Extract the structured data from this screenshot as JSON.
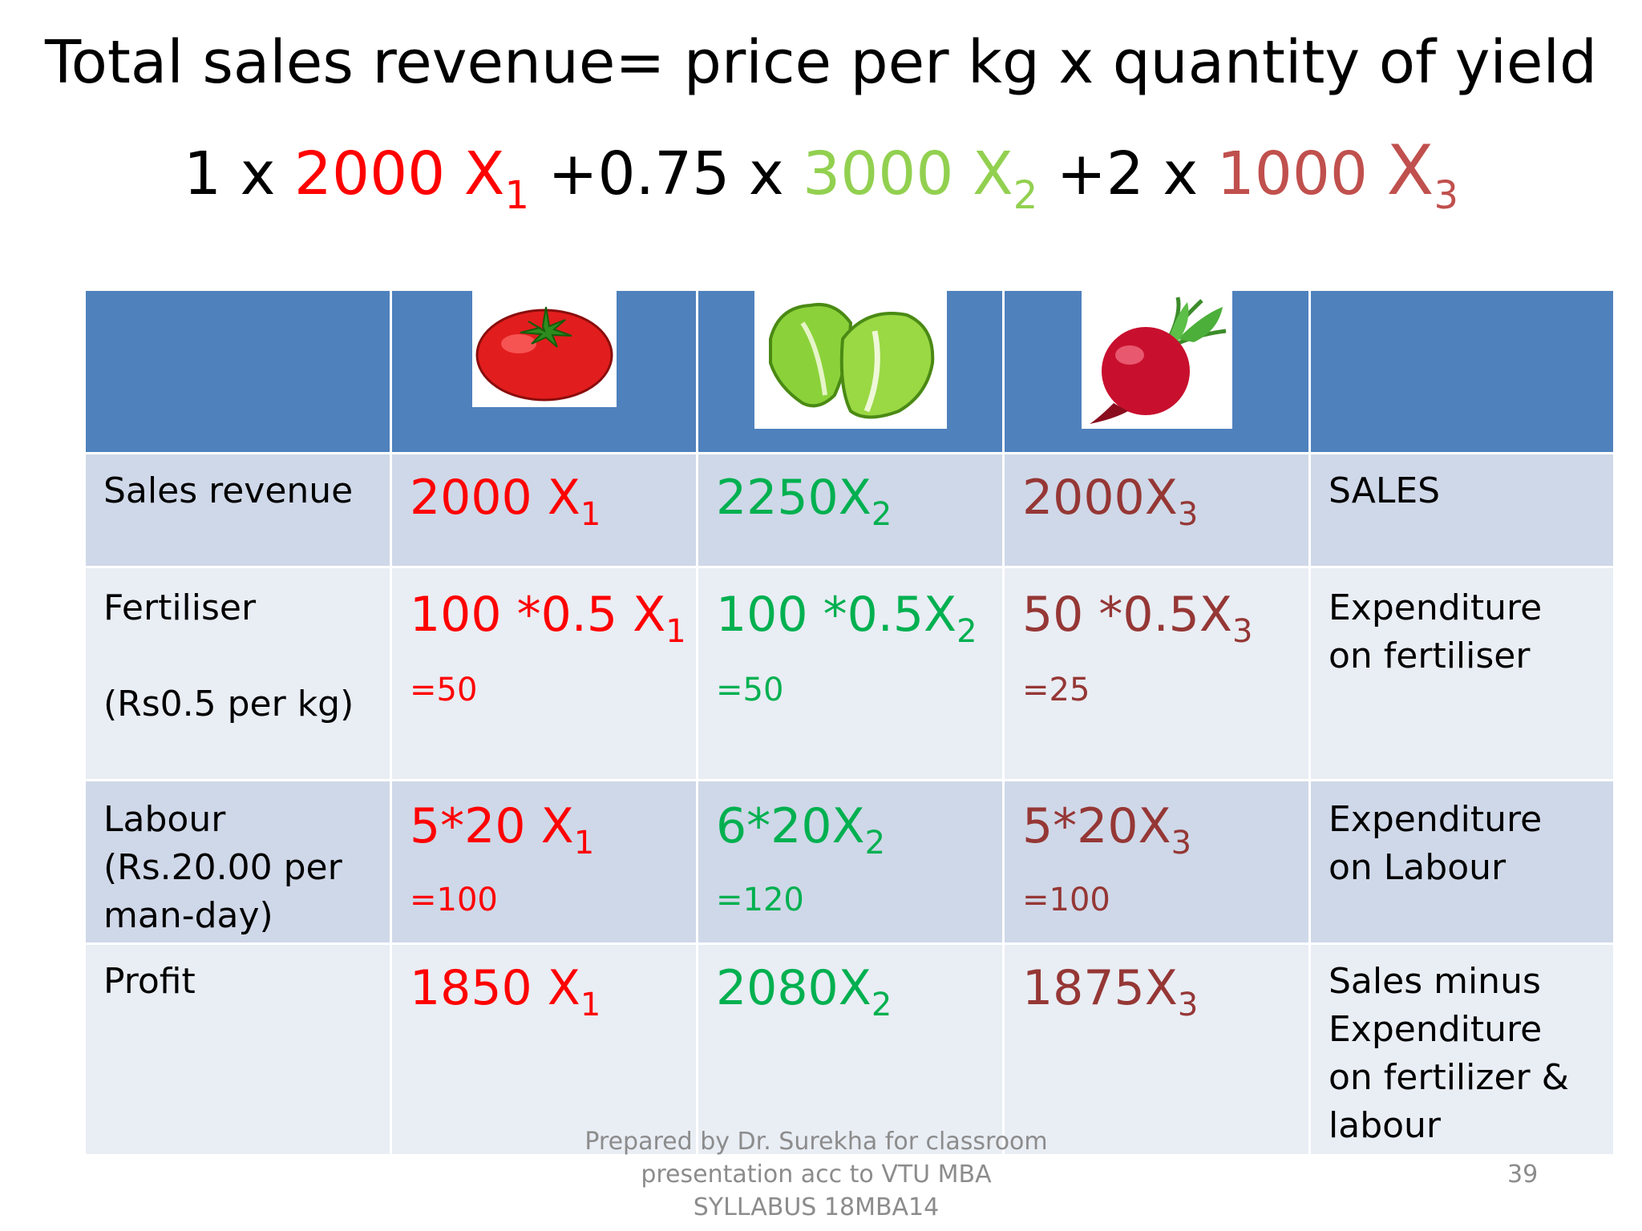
{
  "title": "Total sales revenue= price per kg x quantity of yield",
  "colors": {
    "tomato": "#ff0000",
    "lettuce": "#92d050",
    "lettuce_table": "#00b050",
    "radish": "#c0504d",
    "radish_table": "#953735",
    "header_bg": "#4f81bd"
  },
  "formula": {
    "p1": "1 x ",
    "c1": "2000 X",
    "s1": "1",
    "p2": " +0.75 x ",
    "c2": "3000 X",
    "s2": "2",
    "p3": " +2 x ",
    "c3a": "1000 ",
    "c3b": "X",
    "s3": "3"
  },
  "header_icons": [
    "tomato-icon",
    "lettuce-icon",
    "radish-icon"
  ],
  "rows": {
    "sales": {
      "label": "Sales revenue",
      "c1": {
        "main": "2000 X",
        "sub": "1"
      },
      "c2": {
        "main": "2250X",
        "sub": "2"
      },
      "c3": {
        "main": "2000X",
        "sub": "3"
      },
      "note": "SALES"
    },
    "fertiliser": {
      "label": "Fertiliser",
      "label2": "(Rs0.5 per kg)",
      "c1": {
        "main": "100 *0.5 X",
        "sub": "1",
        "result": "=50"
      },
      "c2": {
        "main": "100 *0.5X",
        "sub": "2",
        "result": "=50"
      },
      "c3": {
        "main": "50 *0.5X",
        "sub": "3",
        "result": "=25"
      },
      "note": "Expenditure on fertiliser"
    },
    "labour": {
      "label": "Labour (Rs.20.00 per man-day)",
      "c1": {
        "main": "5*20 X",
        "sub": "1",
        "result": "=100"
      },
      "c2": {
        "main": "6*20X",
        "sub": "2",
        "result": "=120"
      },
      "c3": {
        "main": "5*20X",
        "sub": "3",
        "result": "=100"
      },
      "note": "Expenditure on Labour"
    },
    "profit": {
      "label": "Profit",
      "c1": {
        "main": "1850 X",
        "sub": "1"
      },
      "c2": {
        "main": "2080X",
        "sub": "2"
      },
      "c3": {
        "main": "1875X",
        "sub": "3"
      },
      "note": "Sales minus Expenditure on fertilizer & labour"
    }
  },
  "footer": {
    "note": "Prepared by Dr. Surekha for classroom presentation acc to VTU MBA SYLLABUS 18MBA14",
    "page_number": "39"
  }
}
